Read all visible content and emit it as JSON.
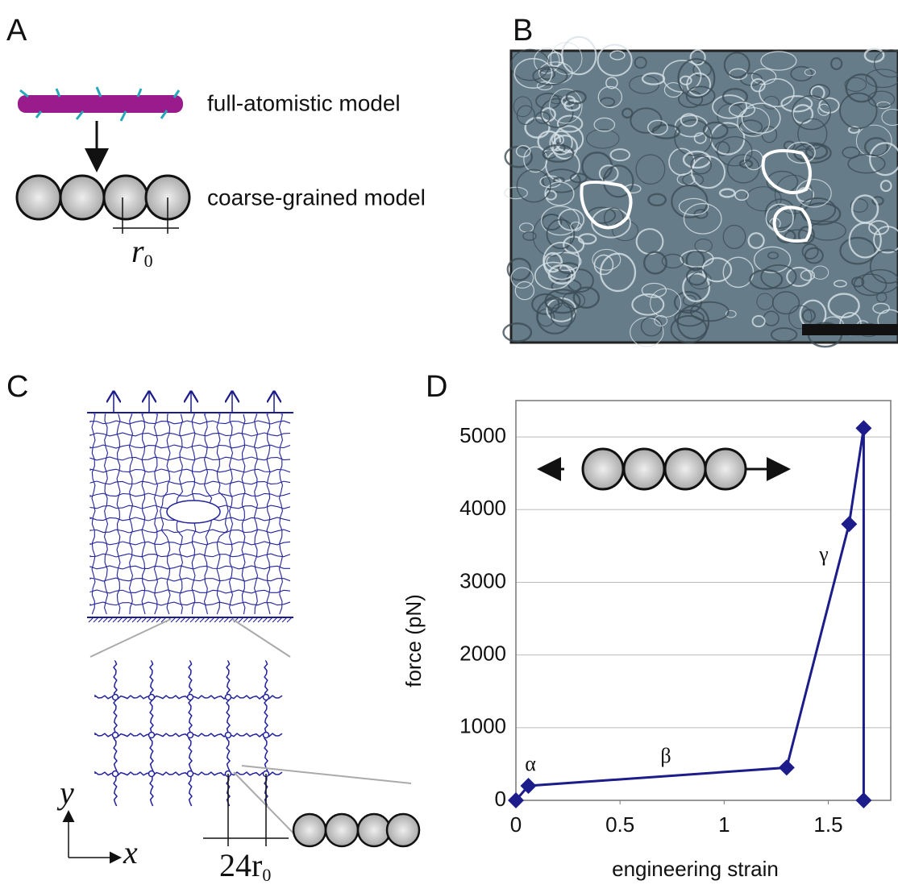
{
  "panels": {
    "A": {
      "label": "A",
      "upper": "full-atomistic model",
      "lower": "coarse-grained model",
      "spacing": {
        "base": "r",
        "sub": "0"
      }
    },
    "B": {
      "label": "B"
    },
    "C": {
      "label": "C",
      "spacing": {
        "base": "24r",
        "sub": "0"
      },
      "x_axis": "x",
      "y_axis": "y"
    },
    "D": {
      "label": "D"
    }
  },
  "chart_data": {
    "type": "line",
    "x": [
      0,
      0.06,
      1.3,
      1.6,
      1.67,
      1.67
    ],
    "values": [
      0,
      200,
      450,
      3800,
      5120,
      0
    ],
    "color": "#1c1c8a",
    "xlim": [
      0,
      1.8
    ],
    "ylim": [
      0,
      5500
    ],
    "xticks": [
      0,
      0.5,
      1,
      1.5
    ],
    "yticks": [
      0,
      1000,
      2000,
      3000,
      4000,
      5000
    ],
    "grid": true,
    "xlabel": "engineering strain",
    "ylabel": "force (pN)",
    "annotations": [
      "α",
      "β",
      "γ"
    ]
  }
}
